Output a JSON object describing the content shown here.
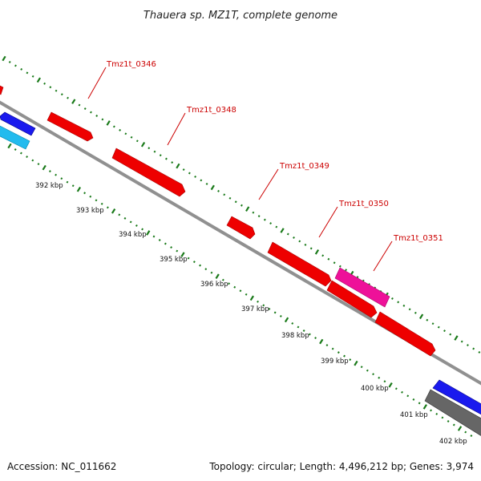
{
  "title": "Thauera sp. MZ1T, complete genome",
  "accession": "Accession: NC_011662",
  "summary": "Topology: circular; Length: 4,496,212 bp; Genes: 3,974",
  "colors": {
    "background": "#ffffff",
    "backbone": "#909090",
    "tick": "#1a7a1a",
    "gene_red": "#ee0000",
    "gene_magenta": "#ee1199",
    "gene_blue": "#1a1aee",
    "gene_cyan": "#22bbee",
    "gene_gray": "#666666",
    "label_text": "#cc0000"
  },
  "kbp_labels": [
    "392 kbp",
    "393 kbp",
    "394 kbp",
    "395 kbp",
    "396 kbp",
    "397 kbp",
    "398 kbp",
    "399 kbp",
    "400 kbp",
    "401 kbp",
    "402 kbp"
  ],
  "gene_labels": [
    "Tmz1t_0346",
    "Tmz1t_0348",
    "Tmz1t_0349",
    "Tmz1t_0350",
    "Tmz1t_0351"
  ]
}
